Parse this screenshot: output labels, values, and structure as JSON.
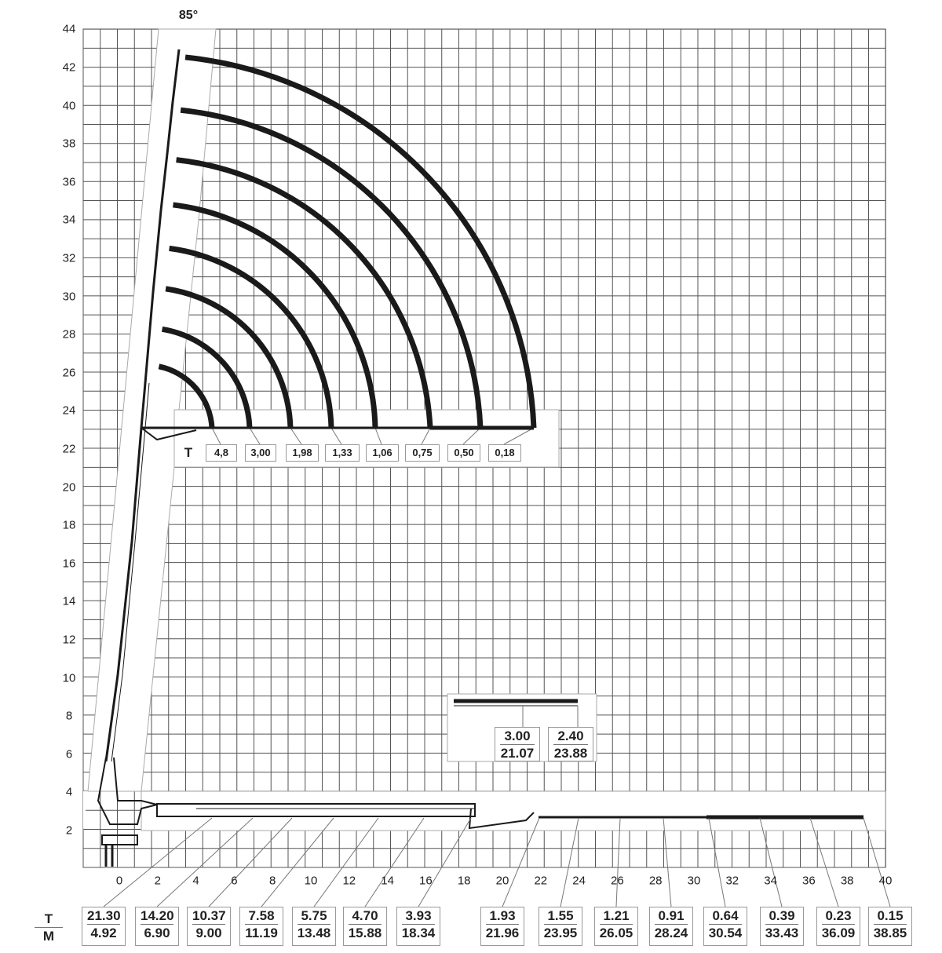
{
  "angle_label": "85°",
  "y_axis_ticks": [
    "2",
    "4",
    "6",
    "8",
    "10",
    "12",
    "14",
    "16",
    "18",
    "20",
    "22",
    "24",
    "26",
    "28",
    "30",
    "32",
    "34",
    "36",
    "38",
    "40",
    "42",
    "44"
  ],
  "x_axis_ticks": [
    "0",
    "2",
    "4",
    "6",
    "8",
    "10",
    "12",
    "14",
    "16",
    "18",
    "20",
    "22",
    "24",
    "26",
    "28",
    "30",
    "32",
    "34",
    "36",
    "38",
    "40"
  ],
  "arc_unit_label": "T",
  "arc_loads": [
    "4,8",
    "3,00",
    "1,98",
    "1,33",
    "1,06",
    "0,75",
    "0,50",
    "0,18"
  ],
  "table_unit_top": "T",
  "table_unit_bottom": "M",
  "load_table": [
    {
      "t": "21.30",
      "m": "4.92"
    },
    {
      "t": "14.20",
      "m": "6.90"
    },
    {
      "t": "10.37",
      "m": "9.00"
    },
    {
      "t": "7.58",
      "m": "11.19"
    },
    {
      "t": "5.75",
      "m": "13.48"
    },
    {
      "t": "4.70",
      "m": "15.88"
    },
    {
      "t": "3.93",
      "m": "18.34"
    },
    {
      "t": "1.93",
      "m": "21.96"
    },
    {
      "t": "1.55",
      "m": "23.95"
    },
    {
      "t": "1.21",
      "m": "26.05"
    },
    {
      "t": "0.91",
      "m": "28.24"
    },
    {
      "t": "0.64",
      "m": "30.54"
    },
    {
      "t": "0.39",
      "m": "33.43"
    },
    {
      "t": "0.23",
      "m": "36.09"
    },
    {
      "t": "0.15",
      "m": "38.85"
    }
  ],
  "inset_table": [
    {
      "t": "3.00",
      "m": "21.07"
    },
    {
      "t": "2.40",
      "m": "23.88"
    }
  ],
  "colors": {
    "grid": "#555555",
    "boom": "#1a1a1a",
    "arc": "#1a1a1a"
  }
}
